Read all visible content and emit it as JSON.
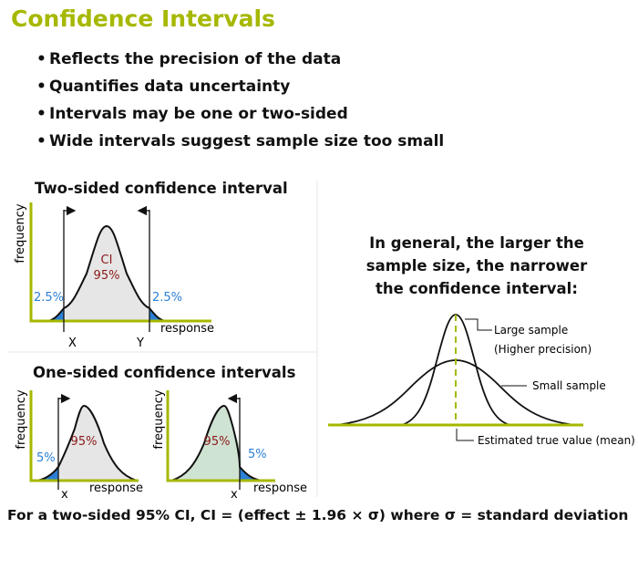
{
  "slide": {
    "title": "Confidence Intervals",
    "bullets": [
      "Reflects the precision of the data",
      "Quantifies data uncertainty",
      "Intervals may be one or two-sided",
      "Wide intervals suggest sample size too small"
    ]
  },
  "two_sided": {
    "heading": "Two-sided confidence interval",
    "y_axis": "frequency",
    "x_axis": "response",
    "center_label": "CI",
    "center_pct": "95%",
    "left_tail": "2.5%",
    "right_tail": "2.5%",
    "left_bound": "X",
    "right_bound": "Y"
  },
  "one_sided": {
    "heading": "One-sided confidence intervals",
    "left_panel": {
      "y_axis": "frequency",
      "x_axis": "response",
      "center_pct": "95%",
      "tail": "5%",
      "bound": "x"
    },
    "right_panel": {
      "y_axis": "frequency",
      "x_axis": "response",
      "center_pct": "95%",
      "tail": "5%",
      "bound": "x"
    }
  },
  "general": {
    "text": "In general, the larger the sample size, the narrower the confidence interval:",
    "large_label": "Large sample",
    "large_sub": "(Higher precision)",
    "small_label": "Small sample",
    "mean_label": "Estimated true value (mean)"
  },
  "formula": "For a two-sided 95% CI, CI = (effect ± 1.96 × σ) where σ = standard deviation",
  "colors": {
    "accent": "#a6b800",
    "tail_blue": "#2b7fd6",
    "dark_red": "#8b1a1a",
    "gray_fill": "#e6e6e6",
    "green_fill": "#cfe3d3"
  }
}
